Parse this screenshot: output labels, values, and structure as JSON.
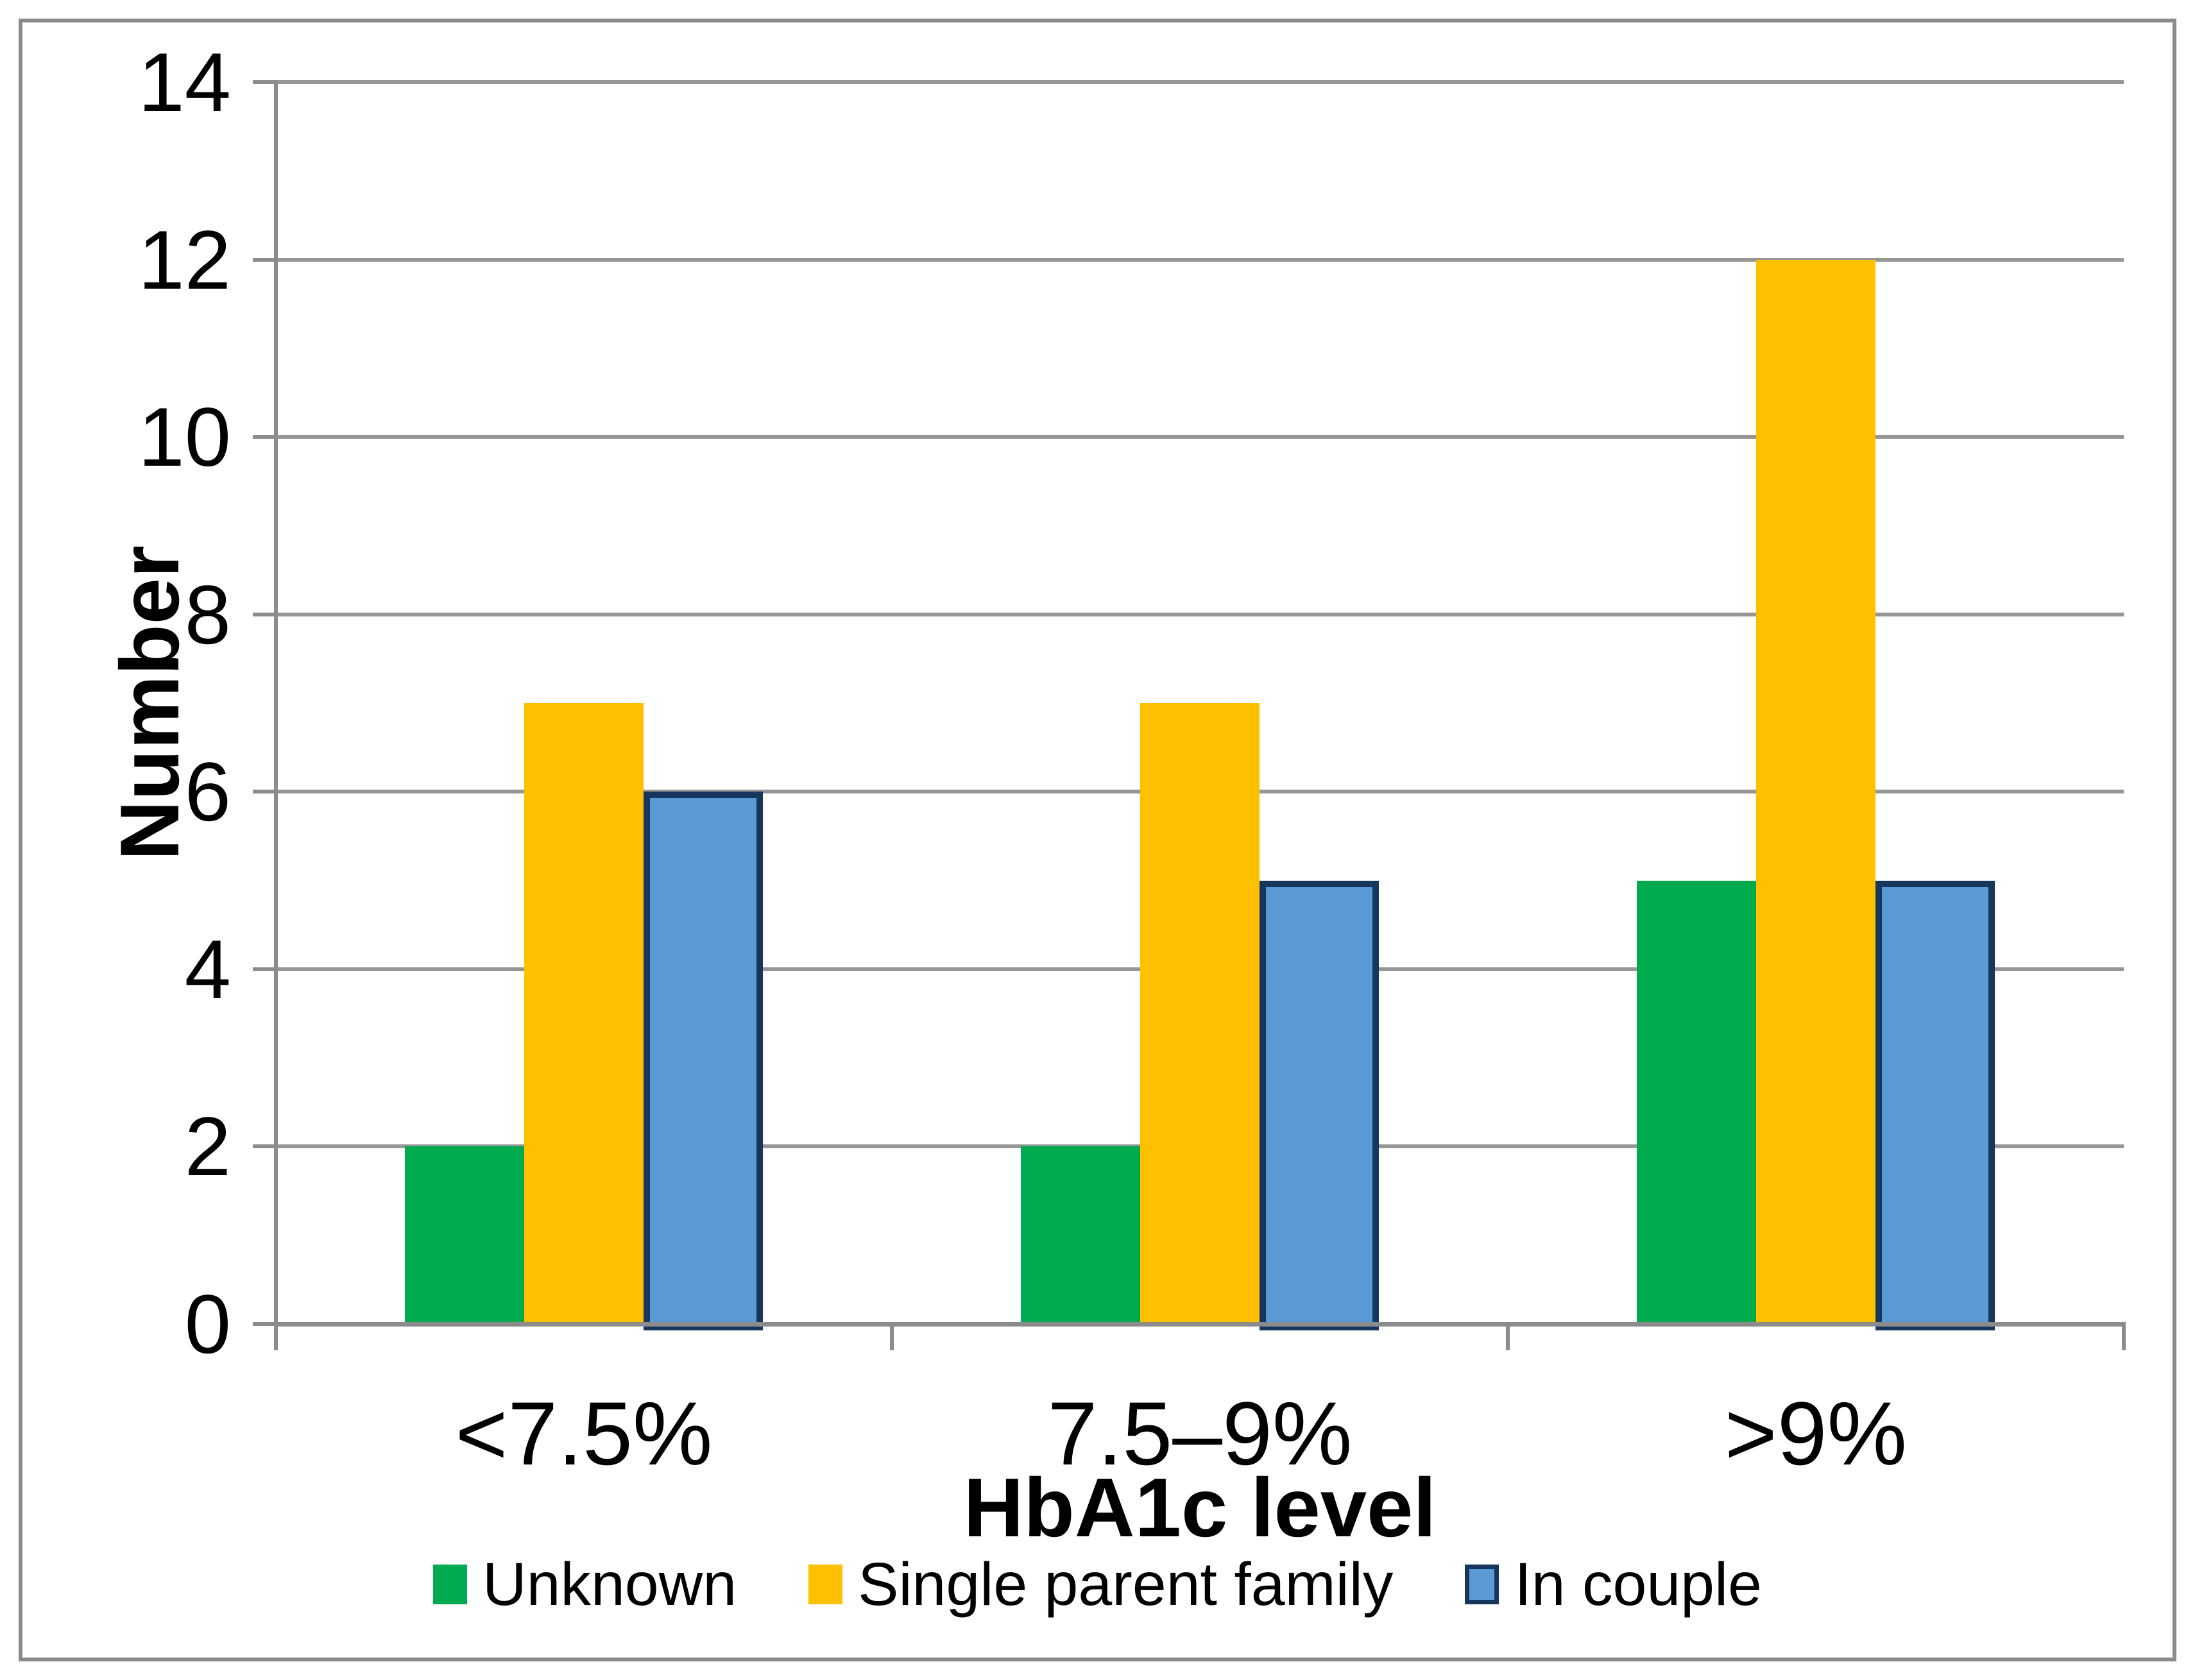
{
  "figure": {
    "frame_color": "#8A8A8A",
    "background": "#FFFFFF"
  },
  "chart_data": {
    "type": "bar",
    "title": "",
    "categories": [
      "<7.5%",
      "7.5–9%",
      ">9%"
    ],
    "series": [
      {
        "name": "Unknown",
        "color": "#00AB4F",
        "values": [
          2,
          2,
          5
        ]
      },
      {
        "name": "Single parent family",
        "color": "#FFC000",
        "values": [
          7,
          7,
          12
        ]
      },
      {
        "name": "In couple",
        "color": "#5B9BD5",
        "border_color": "#17365D",
        "values": [
          6,
          5,
          5
        ]
      }
    ],
    "xlabel": "HbA1c level",
    "ylabel": "Number",
    "ylim": [
      0,
      14
    ],
    "ytick_step": 2,
    "yticks": [
      0,
      2,
      4,
      6,
      8,
      10,
      12,
      14
    ],
    "grid": true,
    "gridline_color": "#969696",
    "axis_color": "#8C8C8C",
    "text_color": "#000000",
    "legend_position": "bottom"
  }
}
